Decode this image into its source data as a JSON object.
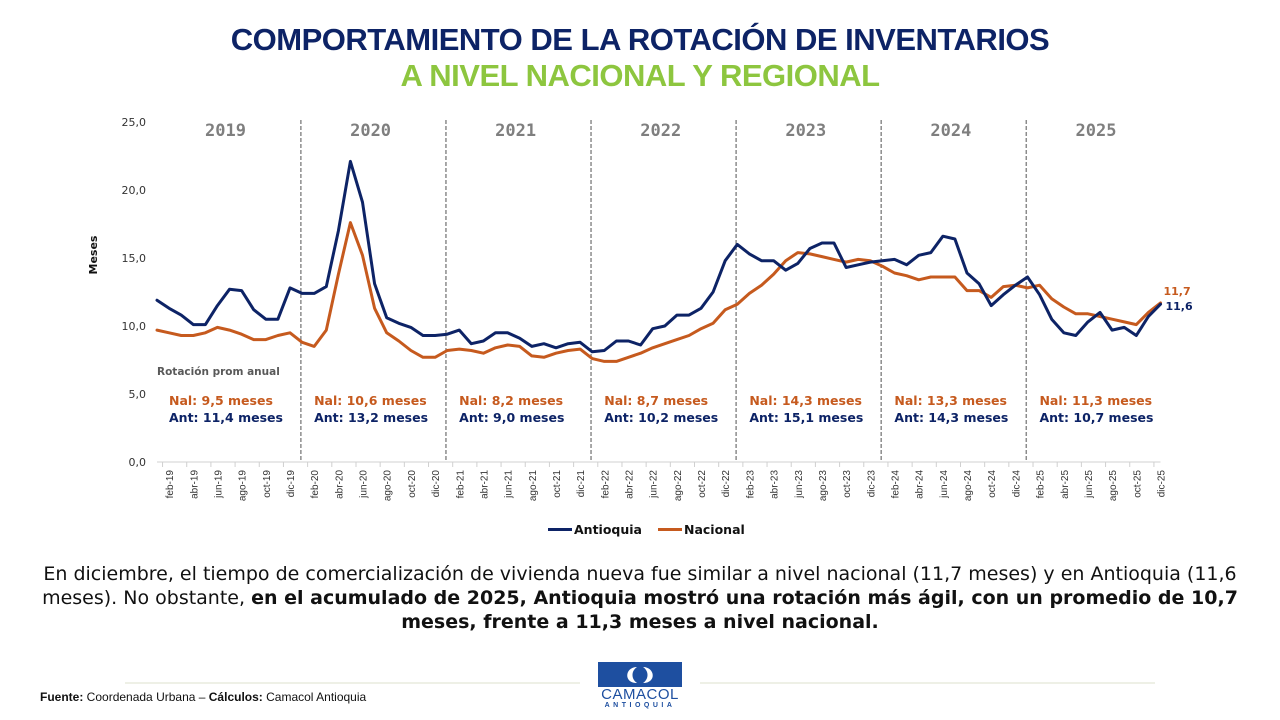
{
  "header": {
    "title_line1": "COMPORTAMIENTO DE LA ROTACIÓN DE INVENTARIOS",
    "title_line2": "A NIVEL NACIONAL Y REGIONAL"
  },
  "colors": {
    "antioquia": "#0d2366",
    "nacional": "#c65a1e",
    "title_blue": "#0d2366",
    "title_green": "#8dc63f",
    "year_label": "#7f7f7f",
    "separator": "#8c8c8c"
  },
  "chart_data": {
    "type": "line",
    "title": "COMPORTAMIENTO DE LA ROTACIÓN DE INVENTARIOS A NIVEL NACIONAL Y REGIONAL",
    "xlabel": "",
    "ylabel": "Meses",
    "ylim": [
      0,
      25
    ],
    "yticks": [
      "0,0",
      "5,0",
      "10,0",
      "15,0",
      "20,0",
      "25,0"
    ],
    "grid": false,
    "legend_position": "bottom-center",
    "x": [
      "ene-19",
      "feb-19",
      "mar-19",
      "abr-19",
      "may-19",
      "jun-19",
      "jul-19",
      "ago-19",
      "sep-19",
      "oct-19",
      "nov-19",
      "dic-19",
      "ene-20",
      "feb-20",
      "mar-20",
      "abr-20",
      "may-20",
      "jun-20",
      "jul-20",
      "ago-20",
      "sep-20",
      "oct-20",
      "nov-20",
      "dic-20",
      "ene-21",
      "feb-21",
      "mar-21",
      "abr-21",
      "may-21",
      "jun-21",
      "jul-21",
      "ago-21",
      "sep-21",
      "oct-21",
      "nov-21",
      "dic-21",
      "ene-22",
      "feb-22",
      "mar-22",
      "abr-22",
      "may-22",
      "jun-22",
      "jul-22",
      "ago-22",
      "sep-22",
      "oct-22",
      "nov-22",
      "dic-22",
      "ene-23",
      "feb-23",
      "mar-23",
      "abr-23",
      "may-23",
      "jun-23",
      "jul-23",
      "ago-23",
      "sep-23",
      "oct-23",
      "nov-23",
      "dic-23",
      "ene-24",
      "feb-24",
      "mar-24",
      "abr-24",
      "may-24",
      "jun-24",
      "jul-24",
      "ago-24",
      "sep-24",
      "oct-24",
      "nov-24",
      "dic-24",
      "ene-25",
      "feb-25",
      "mar-25",
      "abr-25",
      "may-25",
      "jun-25",
      "jul-25",
      "ago-25",
      "sep-25",
      "oct-25",
      "nov-25",
      "dic-25"
    ],
    "xtick_labels": [
      "feb-19",
      "abr-19",
      "jun-19",
      "ago-19",
      "oct-19",
      "dic-19",
      "feb-20",
      "abr-20",
      "jun-20",
      "ago-20",
      "oct-20",
      "dic-20",
      "feb-21",
      "abr-21",
      "jun-21",
      "ago-21",
      "oct-21",
      "dic-21",
      "feb-22",
      "abr-22",
      "jun-22",
      "ago-22",
      "oct-22",
      "dic-22",
      "feb-23",
      "abr-23",
      "jun-23",
      "ago-23",
      "oct-23",
      "dic-23",
      "feb-24",
      "abr-24",
      "jun-24",
      "ago-24",
      "oct-24",
      "dic-24",
      "feb-25",
      "abr-25",
      "jun-25",
      "ago-25",
      "oct-25",
      "dic-25"
    ],
    "series": [
      {
        "name": "Antioquia",
        "values": [
          11.9,
          11.3,
          10.8,
          10.1,
          10.1,
          11.5,
          12.7,
          12.6,
          11.2,
          10.5,
          10.5,
          12.8,
          12.4,
          12.4,
          12.9,
          17.0,
          22.1,
          19.1,
          13.1,
          10.6,
          10.2,
          9.9,
          9.3,
          9.3,
          9.4,
          9.7,
          8.7,
          8.9,
          9.5,
          9.5,
          9.1,
          8.5,
          8.7,
          8.4,
          8.7,
          8.8,
          8.1,
          8.2,
          8.9,
          8.9,
          8.6,
          9.8,
          10.0,
          10.8,
          10.8,
          11.3,
          12.5,
          14.8,
          16.0,
          15.3,
          14.8,
          14.8,
          14.1,
          14.6,
          15.7,
          16.1,
          16.1,
          14.3,
          14.5,
          14.7,
          14.8,
          14.9,
          14.5,
          15.2,
          15.4,
          16.6,
          16.4,
          13.9,
          13.1,
          11.5,
          12.3,
          13.0,
          13.6,
          12.3,
          10.5,
          9.5,
          9.3,
          10.3,
          11.0,
          9.7,
          9.9,
          9.3,
          10.7,
          11.6
        ]
      },
      {
        "name": "Nacional",
        "values": [
          9.7,
          9.5,
          9.3,
          9.3,
          9.5,
          9.9,
          9.7,
          9.4,
          9.0,
          9.0,
          9.3,
          9.5,
          8.8,
          8.5,
          9.7,
          13.8,
          17.6,
          15.2,
          11.3,
          9.5,
          8.9,
          8.2,
          7.7,
          7.7,
          8.2,
          8.3,
          8.2,
          8.0,
          8.4,
          8.6,
          8.5,
          7.8,
          7.7,
          8.0,
          8.2,
          8.3,
          7.6,
          7.4,
          7.4,
          7.7,
          8.0,
          8.4,
          8.7,
          9.0,
          9.3,
          9.8,
          10.2,
          11.2,
          11.6,
          12.4,
          13.0,
          13.8,
          14.8,
          15.4,
          15.3,
          15.1,
          14.9,
          14.7,
          14.9,
          14.8,
          14.4,
          13.9,
          13.7,
          13.4,
          13.6,
          13.6,
          13.6,
          12.6,
          12.6,
          12.1,
          12.9,
          13.0,
          12.8,
          13.0,
          12.0,
          11.4,
          10.9,
          10.9,
          10.7,
          10.5,
          10.3,
          10.1,
          11.0,
          11.7
        ]
      }
    ],
    "end_labels": {
      "nacional": "11,7",
      "antioquia": "11,6"
    },
    "years": [
      "2019",
      "2020",
      "2021",
      "2022",
      "2023",
      "2024",
      "2025"
    ],
    "annotation_heading": "Rotación prom anual",
    "annual_averages": [
      {
        "year": "2019",
        "nal": "Nal: 9,5 meses",
        "ant": "Ant: 11,4 meses"
      },
      {
        "year": "2020",
        "nal": "Nal: 10,6 meses",
        "ant": "Ant: 13,2 meses"
      },
      {
        "year": "2021",
        "nal": "Nal: 8,2 meses",
        "ant": "Ant: 9,0 meses"
      },
      {
        "year": "2022",
        "nal": "Nal: 8,7 meses",
        "ant": "Ant: 10,2 meses"
      },
      {
        "year": "2023",
        "nal": "Nal: 14,3 meses",
        "ant": "Ant: 15,1 meses"
      },
      {
        "year": "2024",
        "nal": "Nal: 13,3 meses",
        "ant": "Ant: 14,3 meses"
      },
      {
        "year": "2025",
        "nal": "Nal: 11,3 meses",
        "ant": "Ant: 10,7 meses"
      }
    ]
  },
  "legend": {
    "antioquia": "Antioquia",
    "nacional": "Nacional"
  },
  "summary": {
    "plain1": "En diciembre, el tiempo de comercialización de vivienda nueva fue similar a nivel nacional (11,7 meses) y en Antioquia (11,6 meses). No obstante, ",
    "bold": "en el acumulado de 2025, Antioquia mostró una rotación más ágil, con un promedio de 10,7 meses, frente a 11,3 meses a nivel nacional."
  },
  "footer": {
    "source_label": "Fuente:",
    "source_value": " Coordenada Urbana – ",
    "calc_label": "Cálculos:",
    "calc_value": " Camacol Antioquia"
  },
  "logo": {
    "name": "CAMACOL",
    "sub": "ANTIOQUIA"
  }
}
